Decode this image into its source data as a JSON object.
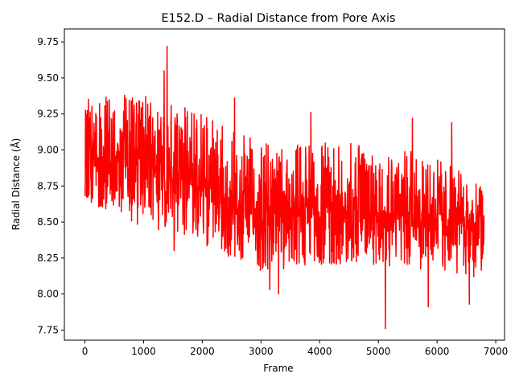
{
  "chart_data": {
    "type": "line",
    "title": "E152.D – Radial Distance from Pore Axis",
    "xlabel": "Frame",
    "ylabel": "Radial Distance (Å)",
    "xlim": [
      -350,
      7150
    ],
    "ylim": [
      7.68,
      9.84
    ],
    "x_ticks": [
      0,
      1000,
      2000,
      3000,
      4000,
      5000,
      6000,
      7000
    ],
    "x_tick_labels": [
      "0",
      "1000",
      "2000",
      "3000",
      "4000",
      "5000",
      "6000",
      "7000"
    ],
    "y_ticks": [
      7.75,
      8.0,
      8.25,
      8.5,
      8.75,
      9.0,
      9.25,
      9.5,
      9.75
    ],
    "y_tick_labels": [
      "7.75",
      "8.00",
      "8.25",
      "8.50",
      "8.75",
      "9.00",
      "9.25",
      "9.50",
      "9.75"
    ],
    "grid": false,
    "legend": "none",
    "line_color": "#ff0000",
    "series": [
      {
        "x_start": 0,
        "x_end": 6800,
        "mean_trend": [
          {
            "x": 0,
            "y": 8.95
          },
          {
            "x": 1000,
            "y": 8.88
          },
          {
            "x": 2000,
            "y": 8.75
          },
          {
            "x": 2500,
            "y": 8.65
          },
          {
            "x": 3000,
            "y": 8.6
          },
          {
            "x": 4000,
            "y": 8.6
          },
          {
            "x": 5000,
            "y": 8.58
          },
          {
            "x": 6000,
            "y": 8.55
          },
          {
            "x": 6800,
            "y": 8.45
          }
        ],
        "max_trend": [
          {
            "x": 0,
            "y": 9.35
          },
          {
            "x": 1000,
            "y": 9.4
          },
          {
            "x": 2000,
            "y": 9.25
          },
          {
            "x": 3000,
            "y": 9.05
          },
          {
            "x": 4000,
            "y": 9.05
          },
          {
            "x": 5000,
            "y": 9.05
          },
          {
            "x": 6000,
            "y": 8.95
          },
          {
            "x": 6800,
            "y": 8.75
          }
        ],
        "min_trend": [
          {
            "x": 0,
            "y": 8.65
          },
          {
            "x": 1000,
            "y": 8.45
          },
          {
            "x": 2000,
            "y": 8.35
          },
          {
            "x": 3000,
            "y": 8.15
          },
          {
            "x": 4000,
            "y": 8.2
          },
          {
            "x": 5000,
            "y": 8.2
          },
          {
            "x": 6000,
            "y": 8.15
          },
          {
            "x": 6800,
            "y": 8.1
          }
        ],
        "spikes": [
          {
            "x": 1400,
            "y": 9.72
          },
          {
            "x": 1350,
            "y": 9.55
          },
          {
            "x": 2550,
            "y": 9.36
          },
          {
            "x": 3850,
            "y": 9.26
          },
          {
            "x": 5580,
            "y": 9.22
          },
          {
            "x": 6250,
            "y": 9.19
          },
          {
            "x": 5120,
            "y": 7.76
          },
          {
            "x": 5850,
            "y": 7.91
          },
          {
            "x": 6550,
            "y": 7.93
          },
          {
            "x": 3300,
            "y": 8.0
          },
          {
            "x": 3150,
            "y": 8.03
          },
          {
            "x": 1520,
            "y": 8.3
          }
        ]
      }
    ]
  }
}
